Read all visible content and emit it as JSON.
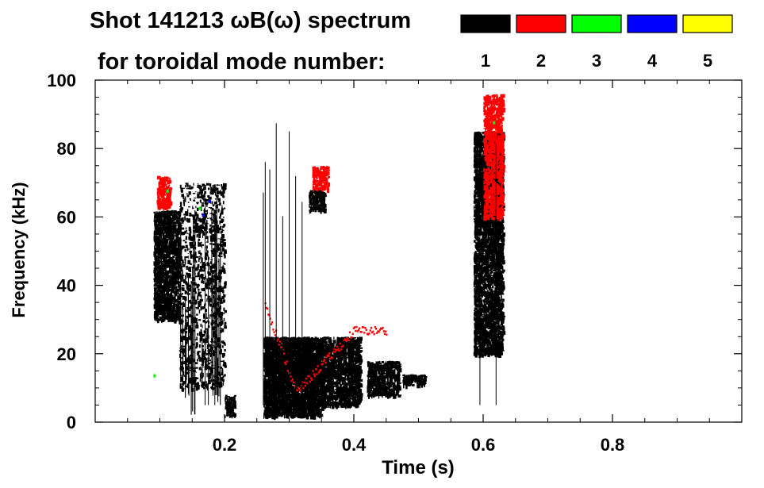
{
  "chart_data": {
    "type": "heatmap",
    "title_line1": "Shot 141213 ωB(ω) spectrum",
    "title_line2": "for toroidal mode number:",
    "xlabel": "Time (s)",
    "ylabel": "Frequency (kHz)",
    "xlim": [
      0.0,
      1.0
    ],
    "ylim": [
      0,
      100
    ],
    "x_ticks": [
      0.2,
      0.4,
      0.6,
      0.8
    ],
    "x_tick_labels": [
      "0.2",
      "0.4",
      "0.6",
      "0.8"
    ],
    "y_ticks": [
      0,
      20,
      40,
      60,
      80,
      100
    ],
    "y_tick_labels": [
      "0",
      "20",
      "40",
      "60",
      "80",
      "100"
    ],
    "legend": [
      {
        "label": "1",
        "color": "#000000"
      },
      {
        "label": "2",
        "color": "#ff0000"
      },
      {
        "label": "3",
        "color": "#00ff00"
      },
      {
        "label": "4",
        "color": "#0000ff"
      },
      {
        "label": "5",
        "color": "#ffff00"
      }
    ],
    "regions": [
      {
        "mode": "1",
        "t": [
          0.09,
          0.13
        ],
        "f": [
          30,
          62
        ],
        "desc": "broadband"
      },
      {
        "mode": "1",
        "t": [
          0.13,
          0.2
        ],
        "f": [
          10,
          70
        ],
        "desc": "scattered vertical streaks"
      },
      {
        "mode": "1",
        "t": [
          0.2,
          0.215
        ],
        "f": [
          2,
          8
        ],
        "desc": "low-frequency blob"
      },
      {
        "mode": "1",
        "t": [
          0.26,
          0.35
        ],
        "f": [
          2,
          25
        ],
        "desc": "strong low-frequency band"
      },
      {
        "mode": "1",
        "t": [
          0.35,
          0.41
        ],
        "f": [
          5,
          25
        ],
        "desc": "low-frequency band"
      },
      {
        "mode": "1",
        "t": [
          0.42,
          0.47
        ],
        "f": [
          8,
          18
        ],
        "desc": "blob"
      },
      {
        "mode": "1",
        "t": [
          0.475,
          0.51
        ],
        "f": [
          11,
          14
        ],
        "desc": "tail"
      },
      {
        "mode": "1",
        "t": [
          0.33,
          0.355
        ],
        "f": [
          62,
          68
        ],
        "desc": "high-frequency patch"
      },
      {
        "mode": "1",
        "t": [
          0.585,
          0.63
        ],
        "f": [
          20,
          85
        ],
        "desc": "broadband"
      },
      {
        "mode": "2",
        "t": [
          0.095,
          0.115
        ],
        "f": [
          63,
          72
        ],
        "desc": "chirp"
      },
      {
        "mode": "2",
        "t": [
          0.26,
          0.45
        ],
        "f": [
          9,
          35
        ],
        "desc": "frequency sweep (down then up)"
      },
      {
        "mode": "2",
        "t": [
          0.335,
          0.36
        ],
        "f": [
          68,
          75
        ],
        "desc": "high-frequency patch"
      },
      {
        "mode": "2",
        "t": [
          0.6,
          0.63
        ],
        "f": [
          60,
          96
        ],
        "desc": "high-frequency streak"
      }
    ]
  }
}
